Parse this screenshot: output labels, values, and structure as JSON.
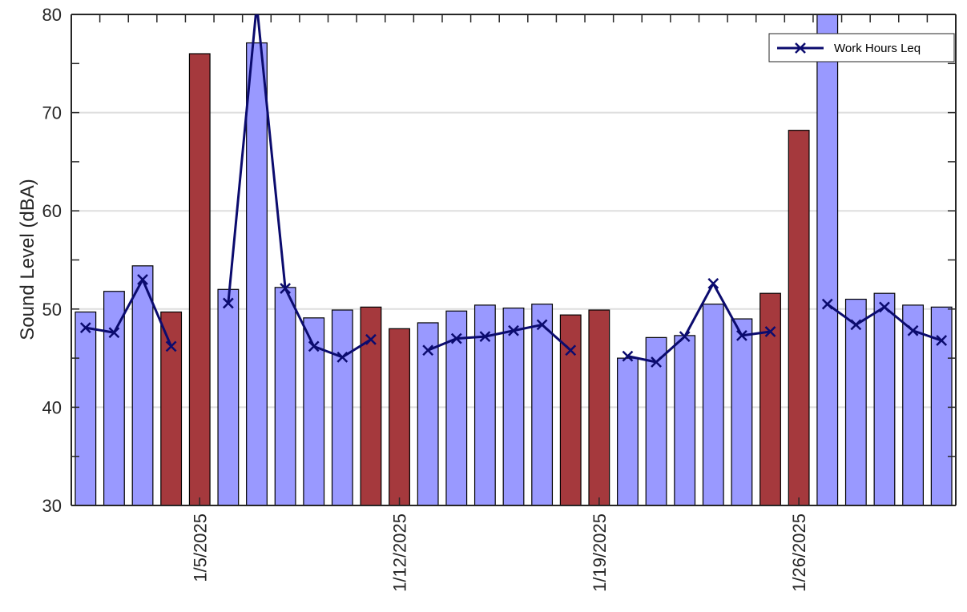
{
  "chart_data": {
    "type": "bar",
    "title": "",
    "xlabel": "",
    "ylabel": "Sound Level (dBA)",
    "ylim": [
      30,
      80
    ],
    "yticks": [
      30,
      40,
      50,
      60,
      70,
      80
    ],
    "xtick_labels": [
      {
        "index": 4,
        "label": "1/5/2025"
      },
      {
        "index": 11,
        "label": "1/12/2025"
      },
      {
        "index": 18,
        "label": "1/19/2025"
      },
      {
        "index": 25,
        "label": "1/26/2025"
      }
    ],
    "grid": "horizontal",
    "legend_placement": "top-right",
    "colors": {
      "weekday_bar": "#9999ff",
      "weekend_bar": "#a5393d",
      "line": "#0b0b6e",
      "grid": "#dedede"
    },
    "dates": [
      "1/1/2025",
      "1/2/2025",
      "1/3/2025",
      "1/4/2025",
      "1/5/2025",
      "1/6/2025",
      "1/7/2025",
      "1/8/2025",
      "1/9/2025",
      "1/10/2025",
      "1/11/2025",
      "1/12/2025",
      "1/13/2025",
      "1/14/2025",
      "1/15/2025",
      "1/16/2025",
      "1/17/2025",
      "1/18/2025",
      "1/19/2025",
      "1/20/2025",
      "1/21/2025",
      "1/22/2025",
      "1/23/2025",
      "1/24/2025",
      "1/25/2025",
      "1/26/2025",
      "1/27/2025",
      "1/28/2025",
      "1/29/2025",
      "1/30/2025",
      "1/31/2025"
    ],
    "bars": {
      "values": [
        49.7,
        51.8,
        54.4,
        49.7,
        76.0,
        52.0,
        77.1,
        52.2,
        49.1,
        49.9,
        50.2,
        48.0,
        48.6,
        49.8,
        50.4,
        50.1,
        50.5,
        49.4,
        49.9,
        45.0,
        47.1,
        47.3,
        50.5,
        49.0,
        51.6,
        68.2,
        83.0,
        51.0,
        51.6,
        50.4,
        50.2
      ],
      "weekend": [
        false,
        false,
        false,
        true,
        true,
        false,
        false,
        false,
        false,
        false,
        true,
        true,
        false,
        false,
        false,
        false,
        false,
        true,
        true,
        false,
        false,
        false,
        false,
        false,
        true,
        true,
        false,
        false,
        false,
        false,
        false
      ]
    },
    "series": [
      {
        "name": "Work Hours Leq",
        "values": [
          48.1,
          47.6,
          53.0,
          46.2,
          null,
          50.6,
          81.0,
          52.1,
          46.2,
          45.1,
          46.9,
          null,
          45.8,
          47.0,
          47.2,
          47.8,
          48.4,
          45.8,
          null,
          45.2,
          44.6,
          47.2,
          52.6,
          47.3,
          47.7,
          null,
          50.5,
          48.4,
          50.2,
          47.8,
          46.8
        ]
      }
    ]
  }
}
